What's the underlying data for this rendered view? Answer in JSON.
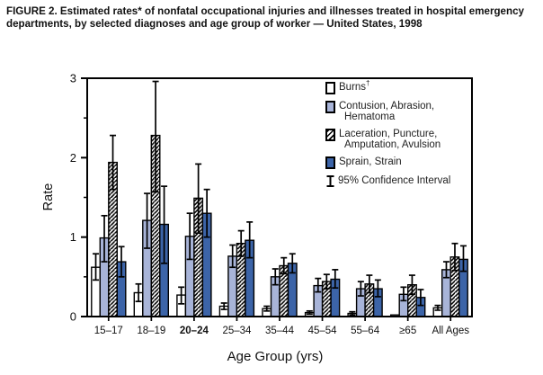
{
  "title": "FIGURE 2. Estimated rates* of nonfatal occupational injuries and illnesses treated in hospital emergency departments, by selected diagnoses and age group of worker — United States, 1998",
  "chart_data": {
    "type": "bar",
    "title": "",
    "xlabel": "Age Group (yrs)",
    "ylabel": "Rate",
    "ylim": [
      0,
      3
    ],
    "yticks": [
      0,
      1,
      2,
      3
    ],
    "minor_tick_step": 0.5,
    "grid": false,
    "legend_position": "top-right-inside",
    "error_bars": "95% confidence interval, black whiskers with caps",
    "categories": [
      "15–17",
      "18–19",
      "20–24",
      "25–34",
      "35–44",
      "45–54",
      "55–64",
      "≥65",
      "All Ages"
    ],
    "emphasized_category": "20–24",
    "series": [
      {
        "id": "burns",
        "name": "Burns",
        "name_superscript": "†",
        "legend_lines": [
          "Burns"
        ],
        "fill": "#ffffff",
        "values": [
          0.62,
          0.3,
          0.27,
          0.13,
          0.1,
          0.05,
          0.04,
          0.02,
          0.11
        ],
        "ci": [
          [
            0.46,
            0.79
          ],
          [
            0.19,
            0.41
          ],
          [
            0.16,
            0.37
          ],
          [
            0.09,
            0.17
          ],
          [
            0.07,
            0.13
          ],
          [
            0.03,
            0.07
          ],
          [
            0.02,
            0.06
          ],
          null,
          [
            0.08,
            0.14
          ]
        ]
      },
      {
        "id": "contusion",
        "name": "Contusion, Abrasion, Hematoma",
        "legend_lines": [
          "Contusion, Abrasion,",
          "Hematoma"
        ],
        "fill": "#a8b4d8",
        "values": [
          0.99,
          1.21,
          1.01,
          0.76,
          0.5,
          0.39,
          0.35,
          0.28,
          0.59
        ],
        "ci": [
          [
            0.69,
            1.27
          ],
          [
            0.86,
            1.55
          ],
          [
            0.72,
            1.3
          ],
          [
            0.62,
            0.9
          ],
          [
            0.4,
            0.6
          ],
          [
            0.31,
            0.48
          ],
          [
            0.26,
            0.44
          ],
          [
            0.2,
            0.37
          ],
          [
            0.49,
            0.69
          ]
        ]
      },
      {
        "id": "laceration",
        "name": "Laceration, Puncture, Amputation, Avulsion",
        "legend_lines": [
          "Laceration, Puncture,",
          "Amputation, Avulsion"
        ],
        "fill": "hatch",
        "values": [
          1.94,
          2.28,
          1.49,
          0.92,
          0.64,
          0.44,
          0.41,
          0.4,
          0.75
        ],
        "ci": [
          [
            1.6,
            2.28
          ],
          [
            1.57,
            2.96
          ],
          [
            1.05,
            1.92
          ],
          [
            0.76,
            1.08
          ],
          [
            0.54,
            0.74
          ],
          [
            0.35,
            0.53
          ],
          [
            0.3,
            0.52
          ],
          [
            0.28,
            0.52
          ],
          [
            0.58,
            0.92
          ]
        ]
      },
      {
        "id": "sprain",
        "name": "Sprain, Strain",
        "legend_lines": [
          "Sprain, Strain"
        ],
        "fill": "#3c64a8",
        "values": [
          0.69,
          1.16,
          1.3,
          0.96,
          0.67,
          0.47,
          0.35,
          0.24,
          0.72
        ],
        "ci": [
          [
            0.5,
            0.88
          ],
          [
            0.67,
            1.64
          ],
          [
            1.0,
            1.6
          ],
          [
            0.74,
            1.19
          ],
          [
            0.55,
            0.79
          ],
          [
            0.36,
            0.59
          ],
          [
            0.25,
            0.46
          ],
          [
            0.14,
            0.34
          ],
          [
            0.57,
            0.89
          ]
        ]
      }
    ],
    "ci_legend_label": "95% Confidence Interval",
    "colors": {
      "bar_stroke": "#000000",
      "hatch_foreground": "#000000",
      "contusion_fill": "#a8b4d8",
      "sprain_fill": "#3c64a8",
      "text": "#111111"
    }
  }
}
